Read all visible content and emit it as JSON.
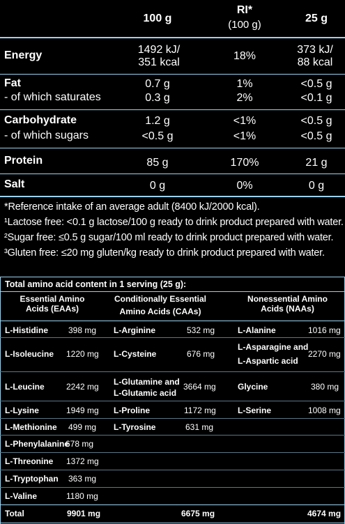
{
  "nutrition": {
    "headers": {
      "col_100g": "100 g",
      "col_ri": "RI*",
      "col_ri_sub": "(100 g)",
      "col_25g": "25 g"
    },
    "energy": {
      "label": "Energy",
      "v100_line1": "1492 kJ/",
      "v100_line2": "351 kcal",
      "ri": "18%",
      "v25_line1": "373 kJ/",
      "v25_line2": "88 kcal"
    },
    "fat": {
      "label": "Fat",
      "v100": "0.7 g",
      "ri": "1%",
      "v25": "<0.5 g"
    },
    "saturates": {
      "label": "- of which saturates",
      "v100": "0.3 g",
      "ri": "2%",
      "v25": "<0.1 g"
    },
    "carbohydrate": {
      "label": "Carbohydrate",
      "v100": "1.2 g",
      "ri": "<1%",
      "v25": "<0.5 g"
    },
    "sugars": {
      "label": "- of which sugars",
      "v100": "<0.5 g",
      "ri": "<1%",
      "v25": "<0.5 g"
    },
    "protein": {
      "label": "Protein",
      "v100": "85 g",
      "ri": "170%",
      "v25": "21 g"
    },
    "salt": {
      "label": "Salt",
      "v100": "0 g",
      "ri": "0%",
      "v25": "0 g"
    }
  },
  "footnotes": {
    "ref": "*Reference intake of an average adult (8400 kJ/2000 kcal).",
    "lactose": "¹Lactose free: <0.1 g lactose/100 g ready to drink product prepared with water.",
    "sugar": "²Sugar free: ≤0.5 g sugar/100 ml ready to drink product prepared with water.",
    "gluten": "³Gluten free: ≤20 mg gluten/kg ready to drink product prepared with water."
  },
  "amino": {
    "title": "Total amino acid content in 1 serving (25 g):",
    "eaa_header_1": "Essential Amino",
    "eaa_header_2": "Acids (EAAs)",
    "caa_header_1": "Conditionally Essential",
    "caa_header_2": "Amino Acids (CAAs)",
    "naa_header_1": "Nonessential Amino",
    "naa_header_2": "Acids (NAAs)",
    "eaa": [
      {
        "name": "L-Histidine",
        "mg": "398 mg"
      },
      {
        "name": "L-Isoleucine",
        "mg": "1220 mg"
      },
      {
        "name": "L-Leucine",
        "mg": "2242 mg"
      },
      {
        "name": "L-Lysine",
        "mg": "1949 mg"
      },
      {
        "name": "L-Methionine",
        "mg": "499 mg"
      },
      {
        "name": "L-Phenylalanine",
        "mg": "678 mg"
      },
      {
        "name": "L-Threonine",
        "mg": "1372 mg"
      },
      {
        "name": "L-Tryptophan",
        "mg": "363 mg"
      },
      {
        "name": "L-Valine",
        "mg": "1180 mg"
      }
    ],
    "caa": [
      {
        "name": "L-Arginine",
        "mg": "532 mg"
      },
      {
        "name": "L-Cysteine",
        "mg": "676 mg"
      },
      {
        "name_1": "L-Glutamine and",
        "name_2": "L-Glutamic acid",
        "mg": "3664 mg"
      },
      {
        "name": "L-Proline",
        "mg": "1172 mg"
      },
      {
        "name": "L-Tyrosine",
        "mg": "631 mg"
      }
    ],
    "naa": [
      {
        "name": "L-Alanine",
        "mg": "1016 mg"
      },
      {
        "name_1": "L-Asparagine and",
        "name_2": "L-Aspartic acid",
        "mg": "2270 mg"
      },
      {
        "name": "Glycine",
        "mg": "380 mg"
      },
      {
        "name": "L-Serine",
        "mg": "1008 mg"
      }
    ],
    "total": {
      "label": "Total",
      "eaa": "9901 mg",
      "caa": "6675 mg",
      "naa": "4674 mg"
    }
  }
}
